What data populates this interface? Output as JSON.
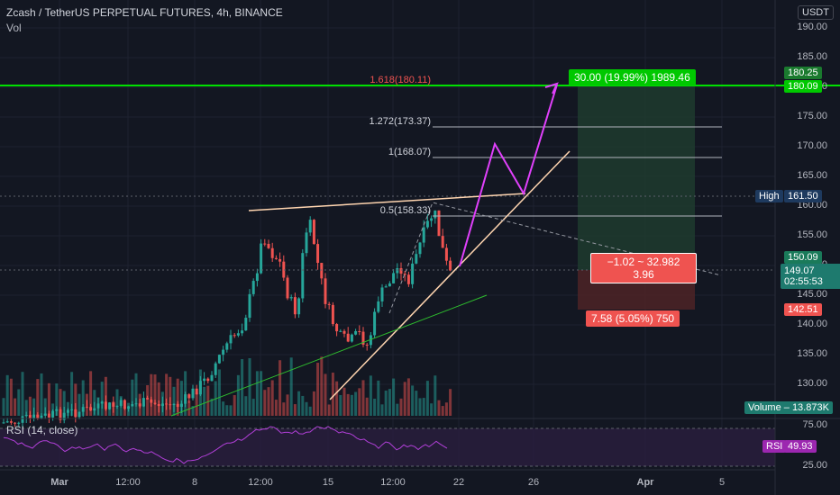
{
  "header": {
    "symbol_line": "Zcash / TetherUS PERPETUAL FUTURES, 4h, BINANCE",
    "vol_label": "Vol",
    "currency_button": "USDT"
  },
  "price_axis": {
    "ticks": [
      "190.00",
      "185.00",
      "180.00",
      "175.00",
      "170.00",
      "165.00",
      "160.00",
      "155.00",
      "150.00",
      "145.00",
      "140.00",
      "135.00",
      "130.00"
    ],
    "high_label": "High",
    "high_value": "161.50",
    "target_upper": "180.25",
    "target_lower": "180.09",
    "stop_price": "150.09",
    "current_price": "149.07",
    "countdown": "02:55:53",
    "stop_loss_price": "142.51",
    "volume_label": "Volume",
    "volume_value": "13.873K"
  },
  "rsi": {
    "label": "RSI (14, close)",
    "upper_tick": "75.00",
    "tag_label": "RSI",
    "tag_value": "49.93",
    "lower_tick": "25.00"
  },
  "time_axis": {
    "ticks": [
      "Mar",
      "12:00",
      "8",
      "12:00",
      "15",
      "12:00",
      "22",
      "26",
      "Apr",
      "5"
    ]
  },
  "drawings": {
    "fib_1618": "1.618(180.11)",
    "fib_1272": "1.272(173.37)",
    "fib_1": "1(168.07)",
    "fib_05": "0.5(158.33)",
    "target_box": "30.00 (19.99%) 1989.46",
    "ratio_line1": "−1.02 ~ 32.982",
    "ratio_line2": "3.96",
    "stop_box": "7.58 (5.05%) 750"
  },
  "colors": {
    "background": "#131722",
    "up": "#26a69a",
    "down": "#ef5350",
    "target_green": "#00e000",
    "projection": "#e040fb",
    "rsi_line": "#b13fd8"
  }
}
